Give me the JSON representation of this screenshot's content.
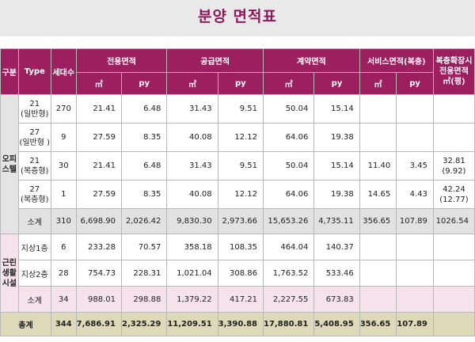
{
  "title": "분양 면적표",
  "headers": {
    "category": "구분",
    "type": "Type",
    "units": "세대수",
    "exclusive": "전용면적",
    "supply": "공급면적",
    "contract": "계약면적",
    "service": "서비스면적(복층)",
    "duplex_ext_line1": "복층확장시",
    "duplex_ext_line2": "전용면적",
    "duplex_ext_line3": "㎡(평)",
    "sqm": "㎡",
    "py": "py"
  },
  "officetel": {
    "label": "오피스텔",
    "rows": [
      {
        "type1": "21",
        "type2": "(일반형)",
        "units": "270",
        "excl_m2": "21.41",
        "excl_py": "6.48",
        "sup_m2": "31.43",
        "sup_py": "9.51",
        "con_m2": "50.04",
        "con_py": "15.14",
        "svc_m2": "",
        "svc_py": "",
        "ext1": "",
        "ext2": ""
      },
      {
        "type1": "27",
        "type2": "(일반형 )",
        "units": "9",
        "excl_m2": "27.59",
        "excl_py": "8.35",
        "sup_m2": "40.08",
        "sup_py": "12.12",
        "con_m2": "64.06",
        "con_py": "19.38",
        "svc_m2": "",
        "svc_py": "",
        "ext1": "",
        "ext2": ""
      },
      {
        "type1": "21",
        "type2": "(복층형)",
        "units": "30",
        "excl_m2": "21.41",
        "excl_py": "6.48",
        "sup_m2": "31.43",
        "sup_py": "9.51",
        "con_m2": "50.04",
        "con_py": "15.14",
        "svc_m2": "11.40",
        "svc_py": "3.45",
        "ext1": "32.81",
        "ext2": "(9.92)"
      },
      {
        "type1": "27",
        "type2": "(복층형)",
        "units": "1",
        "excl_m2": "27.59",
        "excl_py": "8.35",
        "sup_m2": "40.08",
        "sup_py": "12.12",
        "con_m2": "64.06",
        "con_py": "19.38",
        "svc_m2": "14.65",
        "svc_py": "4.43",
        "ext1": "42.24",
        "ext2": "(12.77)"
      }
    ],
    "subtotal": {
      "label": "소계",
      "units": "310",
      "excl_m2": "6,698.90",
      "excl_py": "2,026.42",
      "sup_m2": "9,830.30",
      "sup_py": "2,973.66",
      "con_m2": "15,653.26",
      "con_py": "4,735.11",
      "svc_m2": "356.65",
      "svc_py": "107.89",
      "ext": "1026.54"
    }
  },
  "retail": {
    "label": "근린생활시설",
    "rows": [
      {
        "type": "지상1층",
        "units": "6",
        "excl_m2": "233.28",
        "excl_py": "70.57",
        "sup_m2": "358.18",
        "sup_py": "108.35",
        "con_m2": "464.04",
        "con_py": "140.37"
      },
      {
        "type": "지상2층",
        "units": "28",
        "excl_m2": "754.73",
        "excl_py": "228.31",
        "sup_m2": "1,021.04",
        "sup_py": "308.86",
        "con_m2": "1,763.52",
        "con_py": "533.46"
      }
    ],
    "subtotal": {
      "label": "소계",
      "units": "34",
      "excl_m2": "988.01",
      "excl_py": "298.88",
      "sup_m2": "1,379.22",
      "sup_py": "417.21",
      "con_m2": "2,227.55",
      "con_py": "673.83"
    }
  },
  "total": {
    "label": "총계",
    "units": "344",
    "excl_m2": "7,686.91",
    "excl_py": "2,325.29",
    "sup_m2": "11,209.51",
    "sup_py": "3,390.88",
    "con_m2": "17,880.81",
    "con_py": "5,408.95",
    "svc_m2": "356.65",
    "svc_py": "107.89"
  }
}
